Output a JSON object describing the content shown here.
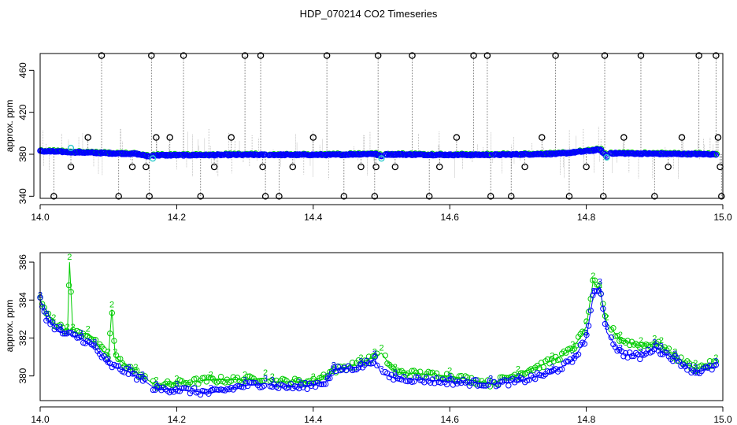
{
  "figure": {
    "title": "HDP_070214  CO2 Timeseries"
  },
  "colors": {
    "blue": "#0000ff",
    "green": "#00cc00",
    "cyan": "#33cccc",
    "black": "#000000",
    "gray": "#999999"
  },
  "chart_data": [
    {
      "type": "scatter",
      "title": "",
      "xlabel": "",
      "ylabel": "approx. ppm",
      "xlim": [
        14.0,
        15.0
      ],
      "ylim": [
        338,
        476
      ],
      "xticks": [
        "14.0",
        "14.2",
        "14.4",
        "14.6",
        "14.8",
        "15.0"
      ],
      "yticks": [
        "340",
        "380",
        "420",
        "460"
      ],
      "x_range": [
        14.0,
        14.99
      ],
      "baseline_segments": [
        {
          "x": [
            14.0,
            14.05,
            14.1,
            14.14,
            14.16
          ],
          "y": [
            383,
            382,
            381,
            380.5,
            378
          ]
        },
        {
          "x": [
            14.165,
            14.3,
            14.33
          ],
          "y": [
            379,
            379.5,
            379.5
          ]
        },
        {
          "x": [
            14.335,
            14.43,
            14.49,
            14.5
          ],
          "y": [
            379.5,
            379.5,
            380.5,
            378
          ]
        },
        {
          "x": [
            14.505,
            14.58,
            14.66
          ],
          "y": [
            380,
            379.5,
            379.5
          ]
        },
        {
          "x": [
            14.665,
            14.76,
            14.8,
            14.82,
            14.83
          ],
          "y": [
            379.5,
            380.5,
            383,
            384.5,
            378
          ]
        },
        {
          "x": [
            14.835,
            14.9,
            14.99
          ],
          "y": [
            381,
            380.5,
            380
          ]
        }
      ],
      "cyan_points": [
        {
          "x": 14.045,
          "y": 386
        },
        {
          "x": 14.165,
          "y": 376
        },
        {
          "x": 14.5,
          "y": 376
        },
        {
          "x": 14.83,
          "y": 377
        }
      ],
      "outliers": [
        {
          "x": 14.02,
          "y": 340
        },
        {
          "x": 14.045,
          "y": 368
        },
        {
          "x": 14.07,
          "y": 396
        },
        {
          "x": 14.09,
          "y": 474
        },
        {
          "x": 14.115,
          "y": 340
        },
        {
          "x": 14.135,
          "y": 368
        },
        {
          "x": 14.155,
          "y": 368
        },
        {
          "x": 14.16,
          "y": 340
        },
        {
          "x": 14.163,
          "y": 474
        },
        {
          "x": 14.17,
          "y": 396
        },
        {
          "x": 14.19,
          "y": 396
        },
        {
          "x": 14.21,
          "y": 474
        },
        {
          "x": 14.235,
          "y": 340
        },
        {
          "x": 14.255,
          "y": 368
        },
        {
          "x": 14.28,
          "y": 396
        },
        {
          "x": 14.3,
          "y": 474
        },
        {
          "x": 14.323,
          "y": 474
        },
        {
          "x": 14.326,
          "y": 368
        },
        {
          "x": 14.33,
          "y": 340
        },
        {
          "x": 14.35,
          "y": 340
        },
        {
          "x": 14.37,
          "y": 368
        },
        {
          "x": 14.4,
          "y": 396
        },
        {
          "x": 14.42,
          "y": 474
        },
        {
          "x": 14.445,
          "y": 340
        },
        {
          "x": 14.47,
          "y": 368
        },
        {
          "x": 14.49,
          "y": 340
        },
        {
          "x": 14.492,
          "y": 368
        },
        {
          "x": 14.495,
          "y": 474
        },
        {
          "x": 14.52,
          "y": 368
        },
        {
          "x": 14.545,
          "y": 474
        },
        {
          "x": 14.57,
          "y": 340
        },
        {
          "x": 14.585,
          "y": 368
        },
        {
          "x": 14.61,
          "y": 396
        },
        {
          "x": 14.635,
          "y": 474
        },
        {
          "x": 14.655,
          "y": 474
        },
        {
          "x": 14.66,
          "y": 340
        },
        {
          "x": 14.69,
          "y": 340
        },
        {
          "x": 14.71,
          "y": 368
        },
        {
          "x": 14.735,
          "y": 396
        },
        {
          "x": 14.755,
          "y": 474
        },
        {
          "x": 14.775,
          "y": 340
        },
        {
          "x": 14.8,
          "y": 368
        },
        {
          "x": 14.825,
          "y": 340
        },
        {
          "x": 14.827,
          "y": 474
        },
        {
          "x": 14.855,
          "y": 396
        },
        {
          "x": 14.88,
          "y": 474
        },
        {
          "x": 14.9,
          "y": 340
        },
        {
          "x": 14.92,
          "y": 368
        },
        {
          "x": 14.94,
          "y": 396
        },
        {
          "x": 14.965,
          "y": 474
        },
        {
          "x": 14.99,
          "y": 474
        },
        {
          "x": 14.993,
          "y": 396
        },
        {
          "x": 14.996,
          "y": 368
        },
        {
          "x": 14.998,
          "y": 340
        }
      ]
    },
    {
      "type": "line",
      "title": "",
      "xlabel": "",
      "ylabel": "approx. ppm",
      "xlim": [
        14.0,
        15.0
      ],
      "ylim": [
        378.7,
        386.5
      ],
      "xticks": [
        "14.0",
        "14.2",
        "14.4",
        "14.6",
        "14.8",
        "15.0"
      ],
      "yticks": [
        "380",
        "382",
        "384",
        "386"
      ],
      "series": [
        {
          "name": "",
          "marker": "3",
          "x": [
            14.0,
            14.01,
            14.03,
            14.06,
            14.08,
            14.1,
            14.13,
            14.15,
            14.17,
            14.2,
            14.25,
            14.3,
            14.33,
            14.34,
            14.38,
            14.42,
            14.43,
            14.47,
            14.49,
            14.5,
            14.52,
            14.6,
            14.66,
            14.7,
            14.75,
            14.78,
            14.8,
            14.81,
            14.82,
            14.83,
            14.85,
            14.88,
            14.9,
            14.91,
            14.93,
            14.96,
            14.99
          ],
          "y": [
            384.0,
            383.0,
            382.3,
            382.0,
            381.5,
            380.6,
            380.2,
            379.8,
            379.3,
            379.3,
            379.1,
            379.5,
            379.6,
            379.5,
            379.4,
            379.7,
            380.3,
            380.5,
            380.9,
            380.1,
            379.9,
            379.7,
            379.6,
            379.7,
            380.2,
            380.8,
            382.0,
            384.2,
            384.7,
            382.3,
            381.2,
            381.0,
            381.5,
            381.3,
            380.9,
            380.2,
            380.5
          ]
        },
        {
          "name": "",
          "marker": "2",
          "x": [
            14.0,
            14.02,
            14.04,
            14.043,
            14.048,
            14.07,
            14.1,
            14.105,
            14.11,
            14.14,
            14.17,
            14.2,
            14.25,
            14.3,
            14.33,
            14.34,
            14.4,
            14.43,
            14.47,
            14.49,
            14.5,
            14.52,
            14.6,
            14.66,
            14.7,
            14.75,
            14.78,
            14.8,
            14.81,
            14.82,
            14.83,
            14.85,
            14.88,
            14.9,
            14.91,
            14.93,
            14.96,
            14.99
          ],
          "y": [
            384.0,
            382.8,
            382.3,
            386.0,
            382.3,
            382.2,
            381.0,
            383.5,
            381.0,
            380.2,
            379.5,
            379.6,
            379.8,
            379.8,
            379.9,
            379.7,
            379.7,
            380.3,
            380.7,
            381.0,
            381.2,
            380.2,
            380.0,
            379.6,
            380.1,
            380.8,
            381.4,
            382.6,
            385.0,
            384.5,
            382.8,
            381.9,
            381.6,
            381.7,
            381.6,
            381.0,
            380.4,
            380.7
          ]
        }
      ]
    }
  ]
}
